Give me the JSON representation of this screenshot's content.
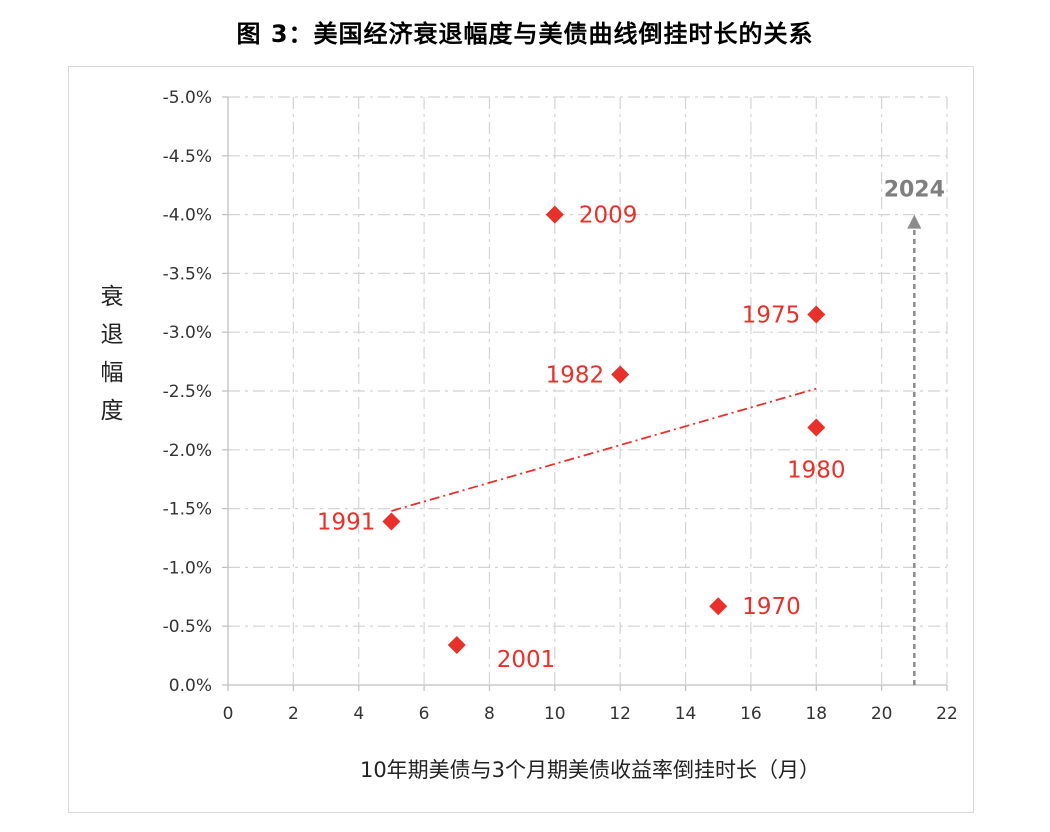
{
  "figure_title": "图 3：美国经济衰退幅度与美债曲线倒挂时长的关系",
  "chart_data": {
    "type": "scatter",
    "xlabel": "10年期美债与3个月期美债收益率倒挂时长（月）",
    "ylabel": "衰退幅度",
    "xlim": [
      0,
      22
    ],
    "ylim": [
      0,
      -0.05
    ],
    "x_ticks": [
      0,
      2,
      4,
      6,
      8,
      10,
      12,
      14,
      16,
      18,
      20,
      22
    ],
    "x_tick_labels": [
      "0",
      "2",
      "4",
      "6",
      "8",
      "10",
      "12",
      "14",
      "16",
      "18",
      "20",
      "22"
    ],
    "y_ticks": [
      0,
      -0.005,
      -0.01,
      -0.015,
      -0.02,
      -0.025,
      -0.03,
      -0.035,
      -0.04,
      -0.045,
      -0.05
    ],
    "y_tick_labels": [
      "0.0%",
      "-0.5%",
      "-1.0%",
      "-1.5%",
      "-2.0%",
      "-2.5%",
      "-3.0%",
      "-3.5%",
      "-4.0%",
      "-4.5%",
      "-5.0%"
    ],
    "grid": true,
    "marker_color": "#e8312a",
    "points": [
      {
        "label": "2009",
        "x": 10,
        "y": -0.04,
        "label_side": "right"
      },
      {
        "label": "1975",
        "x": 18,
        "y": -0.0315,
        "label_side": "left"
      },
      {
        "label": "1982",
        "x": 12,
        "y": -0.0264,
        "label_side": "left"
      },
      {
        "label": "1980",
        "x": 18,
        "y": -0.0219,
        "label_side": "below"
      },
      {
        "label": "1991",
        "x": 5,
        "y": -0.0139,
        "label_side": "left"
      },
      {
        "label": "1970",
        "x": 15,
        "y": -0.0067,
        "label_side": "right"
      },
      {
        "label": "2001",
        "x": 7,
        "y": -0.0034,
        "label_side": "below-right"
      }
    ],
    "trendline": {
      "x": [
        5,
        18
      ],
      "y": [
        -0.0148,
        -0.0252
      ],
      "color": "#e8312a",
      "style": "dash-dot"
    },
    "annotation": {
      "label": "2024",
      "x": 21,
      "y_from": 0,
      "y_to": -0.04,
      "color": "#8c8c8c",
      "style": "dashed-arrow"
    }
  }
}
